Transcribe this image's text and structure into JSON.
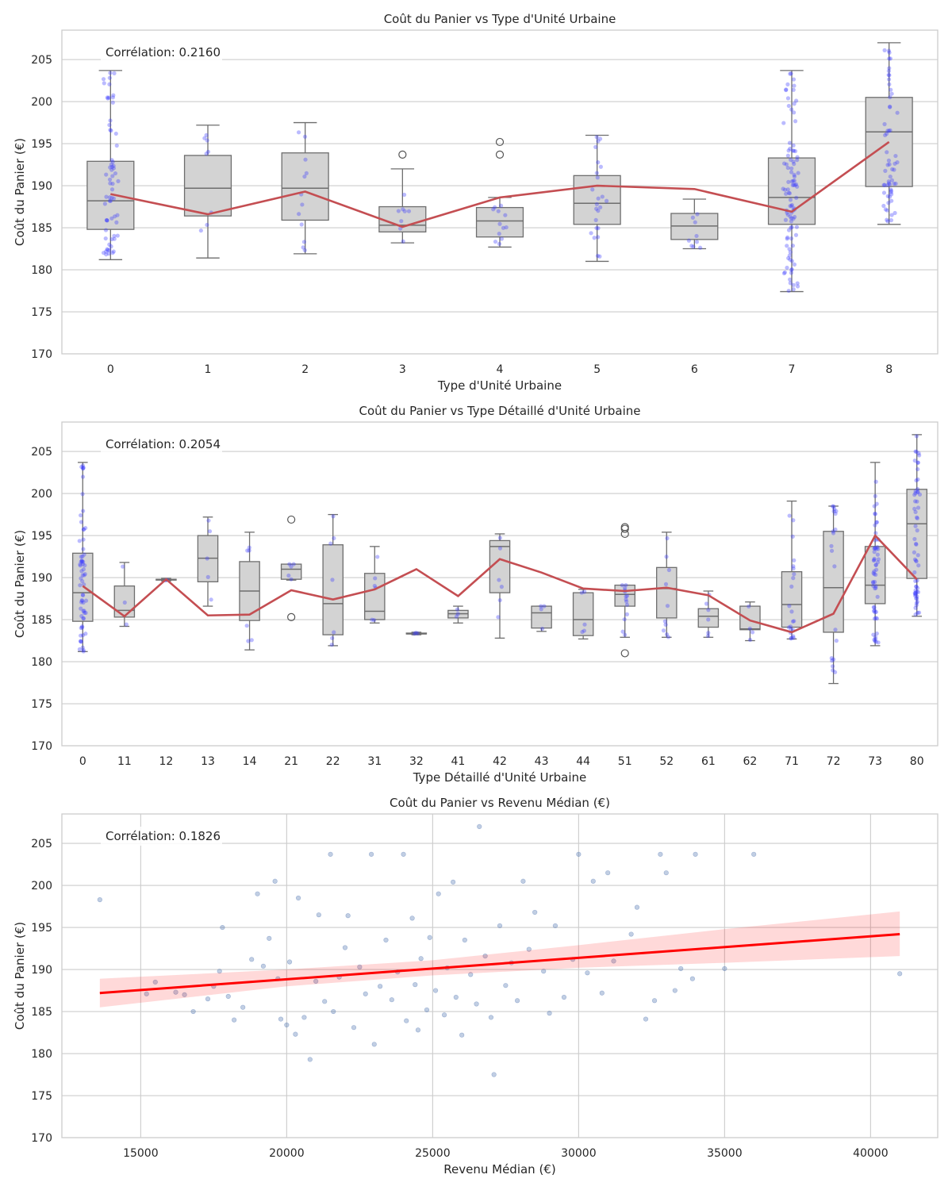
{
  "chart_data": [
    {
      "type": "box",
      "title": "Coût du Panier vs Type d'Unité Urbaine",
      "xlabel": "Type d'Unité Urbaine",
      "ylabel": "Coût du Panier (€)",
      "ylim": [
        170,
        208.5
      ],
      "yticks": [
        170,
        175,
        180,
        185,
        190,
        195,
        200,
        205
      ],
      "correlation_label": "Corrélation: 0.2160",
      "categories": [
        "0",
        "1",
        "2",
        "3",
        "4",
        "5",
        "6",
        "7",
        "8"
      ],
      "boxes": [
        {
          "whislo": 181.2,
          "q1": 184.8,
          "med": 188.2,
          "q3": 192.9,
          "whishi": 203.7,
          "fliers": []
        },
        {
          "whislo": 181.4,
          "q1": 186.4,
          "med": 189.7,
          "q3": 193.6,
          "whishi": 197.2,
          "fliers": []
        },
        {
          "whislo": 181.9,
          "q1": 185.9,
          "med": 189.7,
          "q3": 193.9,
          "whishi": 197.5,
          "fliers": []
        },
        {
          "whislo": 183.2,
          "q1": 184.5,
          "med": 185.3,
          "q3": 187.5,
          "whishi": 192.0,
          "fliers": [
            193.7
          ]
        },
        {
          "whislo": 182.7,
          "q1": 183.9,
          "med": 185.8,
          "q3": 187.4,
          "whishi": 188.6,
          "fliers": [
            193.7,
            195.2
          ]
        },
        {
          "whislo": 181.0,
          "q1": 185.4,
          "med": 187.9,
          "q3": 191.2,
          "whishi": 196.0,
          "fliers": []
        },
        {
          "whislo": 182.5,
          "q1": 183.6,
          "med": 185.2,
          "q3": 186.7,
          "whishi": 188.4,
          "fliers": []
        },
        {
          "whislo": 177.4,
          "q1": 185.4,
          "med": 188.6,
          "q3": 193.3,
          "whishi": 203.7,
          "fliers": []
        },
        {
          "whislo": 185.4,
          "q1": 189.9,
          "med": 196.4,
          "q3": 200.5,
          "whishi": 207.0,
          "fliers": []
        }
      ],
      "mean_line": [
        189.0,
        186.6,
        189.3,
        185.1,
        188.6,
        190.0,
        189.6,
        186.9,
        195.2
      ],
      "point_counts": [
        65,
        8,
        12,
        8,
        12,
        24,
        9,
        100,
        60
      ]
    },
    {
      "type": "box",
      "title": "Coût du Panier vs Type Détaillé d'Unité Urbaine",
      "xlabel": "Type Détaillé d'Unité Urbaine",
      "ylabel": "Coût du Panier (€)",
      "ylim": [
        170,
        208.5
      ],
      "yticks": [
        170,
        175,
        180,
        185,
        190,
        195,
        200,
        205
      ],
      "correlation_label": "Corrélation: 0.2054",
      "categories": [
        "0",
        "11",
        "12",
        "13",
        "14",
        "21",
        "22",
        "31",
        "32",
        "41",
        "42",
        "43",
        "44",
        "51",
        "52",
        "61",
        "62",
        "71",
        "72",
        "73",
        "80"
      ],
      "boxes": [
        {
          "whislo": 181.2,
          "q1": 184.8,
          "med": 188.2,
          "q3": 192.9,
          "whishi": 203.7,
          "fliers": []
        },
        {
          "whislo": 184.2,
          "q1": 185.3,
          "med": 186.1,
          "q3": 189.0,
          "whishi": 191.8,
          "fliers": []
        },
        {
          "whislo": 189.6,
          "q1": 189.7,
          "med": 189.75,
          "q3": 189.8,
          "whishi": 189.9,
          "fliers": []
        },
        {
          "whislo": 186.6,
          "q1": 189.5,
          "med": 192.3,
          "q3": 195.0,
          "whishi": 197.2,
          "fliers": []
        },
        {
          "whislo": 181.4,
          "q1": 184.9,
          "med": 188.4,
          "q3": 191.9,
          "whishi": 195.4,
          "fliers": []
        },
        {
          "whislo": 189.7,
          "q1": 189.8,
          "med": 191.0,
          "q3": 191.6,
          "whishi": 191.6,
          "fliers": [
            185.3,
            196.9
          ]
        },
        {
          "whislo": 181.9,
          "q1": 183.2,
          "med": 186.9,
          "q3": 193.9,
          "whishi": 197.5,
          "fliers": []
        },
        {
          "whislo": 184.6,
          "q1": 185.0,
          "med": 186.0,
          "q3": 190.5,
          "whishi": 193.7,
          "fliers": []
        },
        {
          "whislo": 183.2,
          "q1": 183.3,
          "med": 183.3,
          "q3": 183.4,
          "whishi": 183.5,
          "fliers": []
        },
        {
          "whislo": 184.6,
          "q1": 185.2,
          "med": 185.7,
          "q3": 186.1,
          "whishi": 186.6,
          "fliers": []
        },
        {
          "whislo": 182.8,
          "q1": 188.2,
          "med": 193.7,
          "q3": 194.4,
          "whishi": 195.2,
          "fliers": []
        },
        {
          "whislo": 183.6,
          "q1": 184.0,
          "med": 185.8,
          "q3": 186.6,
          "whishi": 186.6,
          "fliers": []
        },
        {
          "whislo": 182.7,
          "q1": 183.1,
          "med": 185.0,
          "q3": 188.2,
          "whishi": 188.6,
          "fliers": []
        },
        {
          "whislo": 182.9,
          "q1": 186.6,
          "med": 188.0,
          "q3": 189.1,
          "whishi": 189.1,
          "fliers": [
            181.0,
            195.2,
            195.8,
            196.0
          ]
        },
        {
          "whislo": 182.9,
          "q1": 185.2,
          "med": 188.7,
          "q3": 191.2,
          "whishi": 195.4,
          "fliers": []
        },
        {
          "whislo": 182.9,
          "q1": 184.1,
          "med": 185.4,
          "q3": 186.3,
          "whishi": 188.4,
          "fliers": []
        },
        {
          "whislo": 182.5,
          "q1": 183.8,
          "med": 183.9,
          "q3": 186.6,
          "whishi": 187.1,
          "fliers": []
        },
        {
          "whislo": 182.7,
          "q1": 184.1,
          "med": 186.8,
          "q3": 190.7,
          "whishi": 199.1,
          "fliers": []
        },
        {
          "whislo": 177.4,
          "q1": 183.5,
          "med": 188.8,
          "q3": 195.5,
          "whishi": 198.5,
          "fliers": []
        },
        {
          "whislo": 181.9,
          "q1": 186.9,
          "med": 189.1,
          "q3": 193.7,
          "whishi": 203.7,
          "fliers": []
        },
        {
          "whislo": 185.4,
          "q1": 189.9,
          "med": 196.4,
          "q3": 200.5,
          "whishi": 207.0,
          "fliers": []
        }
      ],
      "mean_line": [
        189.0,
        185.4,
        189.8,
        185.5,
        185.6,
        188.5,
        187.4,
        188.6,
        191.0,
        187.8,
        192.2,
        190.6,
        188.7,
        188.4,
        188.8,
        187.9,
        184.9,
        183.5,
        185.7,
        195.0,
        189.8
      ],
      "point_counts": [
        65,
        3,
        2,
        5,
        6,
        5,
        7,
        6,
        3,
        3,
        6,
        4,
        5,
        14,
        10,
        6,
        4,
        22,
        20,
        58,
        60
      ]
    },
    {
      "type": "scatter",
      "title": "Coût du Panier vs Revenu Médian (€)",
      "xlabel": "Revenu Médian (€)",
      "ylabel": "Coût du Panier (€)",
      "xlim": [
        12300,
        42300
      ],
      "ylim": [
        170,
        208.5
      ],
      "xticks": [
        15000,
        20000,
        25000,
        30000,
        35000,
        40000
      ],
      "yticks": [
        170,
        175,
        180,
        185,
        190,
        195,
        200,
        205
      ],
      "correlation_label": "Corrélation: 0.1826",
      "regression": {
        "x_start": 13600,
        "y_start": 187.2,
        "x_end": 41000,
        "y_end": 194.2
      },
      "ci_band": {
        "upper": [
          [
            13600,
            188.9
          ],
          [
            20000,
            190.0
          ],
          [
            25000,
            191.1
          ],
          [
            30000,
            192.9
          ],
          [
            35000,
            194.8
          ],
          [
            41000,
            196.9
          ]
        ],
        "lower": [
          [
            13600,
            185.5
          ],
          [
            20000,
            188.0
          ],
          [
            25000,
            189.3
          ],
          [
            30000,
            190.2
          ],
          [
            35000,
            190.8
          ],
          [
            41000,
            191.6
          ]
        ]
      },
      "points": [
        [
          13600,
          198.3
        ],
        [
          15200,
          187.1
        ],
        [
          15500,
          188.5
        ],
        [
          16200,
          187.3
        ],
        [
          16500,
          187.0
        ],
        [
          16800,
          185.0
        ],
        [
          17300,
          186.5
        ],
        [
          17500,
          188.0
        ],
        [
          17700,
          189.8
        ],
        [
          17800,
          195.0
        ],
        [
          18000,
          186.8
        ],
        [
          18200,
          184.0
        ],
        [
          18500,
          185.5
        ],
        [
          18800,
          191.2
        ],
        [
          19000,
          199.0
        ],
        [
          19200,
          190.4
        ],
        [
          19400,
          193.7
        ],
        [
          19600,
          200.5
        ],
        [
          19700,
          188.9
        ],
        [
          19800,
          184.1
        ],
        [
          20000,
          183.4
        ],
        [
          20100,
          190.9
        ],
        [
          20300,
          182.3
        ],
        [
          20400,
          198.5
        ],
        [
          20600,
          184.3
        ],
        [
          20800,
          179.3
        ],
        [
          21000,
          188.6
        ],
        [
          21100,
          196.5
        ],
        [
          21300,
          186.2
        ],
        [
          21500,
          203.7
        ],
        [
          21600,
          185.0
        ],
        [
          21800,
          189.1
        ],
        [
          22000,
          192.6
        ],
        [
          22100,
          196.4
        ],
        [
          22300,
          183.1
        ],
        [
          22500,
          190.3
        ],
        [
          22700,
          187.1
        ],
        [
          22900,
          203.7
        ],
        [
          23000,
          181.1
        ],
        [
          23200,
          188.0
        ],
        [
          23400,
          193.5
        ],
        [
          23600,
          186.4
        ],
        [
          23800,
          189.7
        ],
        [
          24000,
          203.7
        ],
        [
          24100,
          183.9
        ],
        [
          24300,
          196.1
        ],
        [
          24400,
          188.2
        ],
        [
          24500,
          182.8
        ],
        [
          24600,
          191.3
        ],
        [
          24800,
          185.2
        ],
        [
          24900,
          193.8
        ],
        [
          25100,
          187.5
        ],
        [
          25200,
          199.0
        ],
        [
          25400,
          184.6
        ],
        [
          25500,
          190.2
        ],
        [
          25700,
          200.4
        ],
        [
          25800,
          186.7
        ],
        [
          26000,
          182.2
        ],
        [
          26100,
          193.5
        ],
        [
          26300,
          189.4
        ],
        [
          26500,
          185.9
        ],
        [
          26600,
          207.0
        ],
        [
          26800,
          191.6
        ],
        [
          27000,
          184.3
        ],
        [
          27100,
          177.5
        ],
        [
          27300,
          195.2
        ],
        [
          27500,
          188.1
        ],
        [
          27700,
          190.8
        ],
        [
          27900,
          186.3
        ],
        [
          28100,
          200.5
        ],
        [
          28300,
          192.4
        ],
        [
          28500,
          196.8
        ],
        [
          28800,
          189.8
        ],
        [
          29000,
          184.8
        ],
        [
          29200,
          195.2
        ],
        [
          29500,
          186.7
        ],
        [
          29800,
          191.2
        ],
        [
          30000,
          203.7
        ],
        [
          30300,
          189.6
        ],
        [
          30500,
          200.5
        ],
        [
          30800,
          187.2
        ],
        [
          31000,
          201.5
        ],
        [
          31200,
          191.0
        ],
        [
          31800,
          194.2
        ],
        [
          32000,
          197.4
        ],
        [
          32300,
          184.1
        ],
        [
          32600,
          186.3
        ],
        [
          32800,
          203.7
        ],
        [
          33000,
          201.5
        ],
        [
          33300,
          187.5
        ],
        [
          33500,
          190.1
        ],
        [
          33900,
          188.9
        ],
        [
          34000,
          203.7
        ],
        [
          35000,
          190.1
        ],
        [
          36000,
          203.7
        ],
        [
          41000,
          189.5
        ]
      ]
    }
  ]
}
